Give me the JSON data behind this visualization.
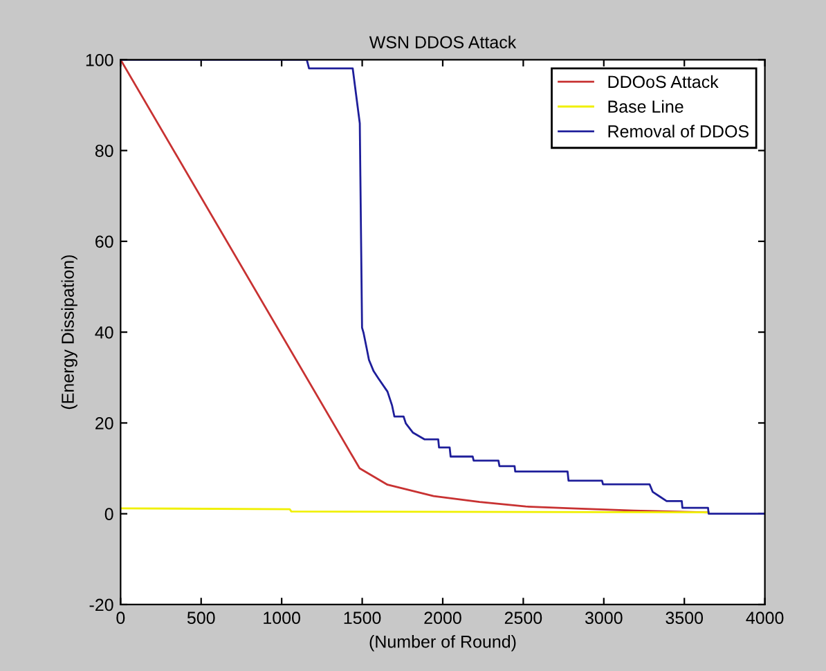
{
  "chart_data": {
    "type": "line",
    "title": "WSN DDOS Attack",
    "xlabel": "(Number of Round)",
    "ylabel": "(Energy Dissipation)",
    "xlim": [
      0,
      4000
    ],
    "ylim": [
      -20,
      100
    ],
    "xticks": [
      0,
      500,
      1000,
      1500,
      2000,
      2500,
      3000,
      3500,
      4000
    ],
    "yticks": [
      -20,
      0,
      20,
      40,
      60,
      80,
      100
    ],
    "legend": "top right",
    "grid": false,
    "line_style": "solid",
    "marker": "none",
    "series": [
      {
        "name": "DDOoS Attack",
        "color": "#c83232",
        "x": [
          0,
          1484,
          1657,
          1943,
          2229,
          2515,
          2800,
          3187,
          3650
        ],
        "values": [
          100,
          10,
          6.4,
          3.9,
          2.6,
          1.6,
          1.2,
          0.7,
          0.3
        ]
      },
      {
        "name": "Base Line",
        "color": "#f0f000",
        "x": [
          0,
          1050,
          1060,
          3650
        ],
        "values": [
          1.2,
          1.0,
          0.5,
          0.3
        ]
      },
      {
        "name": "Removal of DDOS",
        "color": "#1e1e9a",
        "x": [
          0,
          1156,
          1170,
          1441,
          1485,
          1499,
          1508,
          1528,
          1542,
          1571,
          1599,
          1657,
          1685,
          1700,
          1757,
          1771,
          1814,
          1886,
          1972,
          1977,
          2043,
          2049,
          2186,
          2192,
          2346,
          2352,
          2446,
          2450,
          2775,
          2781,
          2989,
          2995,
          3284,
          3304,
          3347,
          3390,
          3484,
          3488,
          3647,
          3651,
          4000
        ],
        "values": [
          100,
          100,
          98.1,
          98.1,
          86,
          41,
          39.9,
          36.4,
          33.9,
          31.4,
          29.9,
          26.9,
          23.9,
          21.4,
          21.4,
          19.9,
          17.9,
          16.4,
          16.4,
          14.6,
          14.6,
          12.6,
          12.6,
          11.7,
          11.7,
          10.5,
          10.5,
          9.3,
          9.3,
          7.3,
          7.3,
          6.5,
          6.5,
          4.8,
          3.8,
          2.8,
          2.8,
          1.3,
          1.3,
          0,
          0
        ]
      }
    ]
  }
}
